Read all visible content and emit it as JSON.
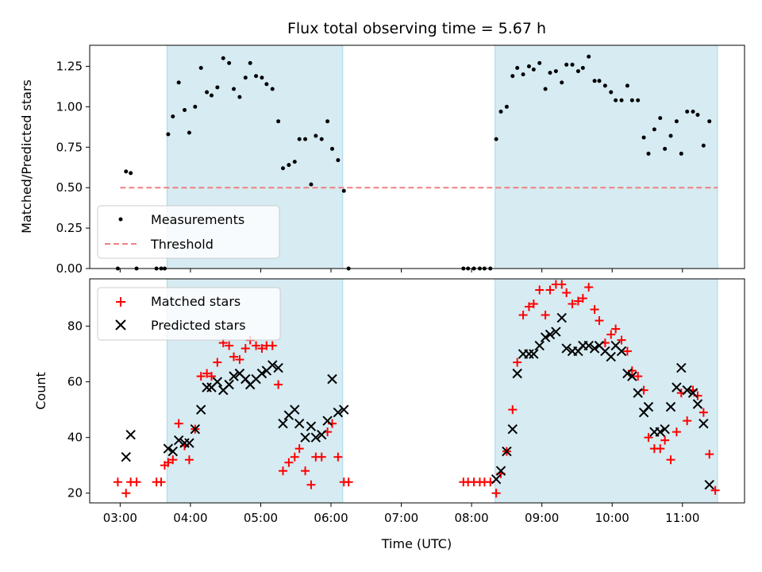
{
  "chart_data": [
    {
      "type": "scatter",
      "title": "Flux total observing time = 5.67 h",
      "xlabel": "",
      "ylabel": "Matched/Predicted stars",
      "xlim": [
        "02:34",
        "11:53"
      ],
      "ylim": [
        0,
        1.38
      ],
      "yticks": [
        "0.00",
        "0.25",
        "0.50",
        "0.75",
        "1.00",
        "1.25"
      ],
      "grid": false,
      "legend": "lower-left",
      "shaded_intervals": [
        [
          "03:40",
          "06:10"
        ],
        [
          "08:20",
          "11:30"
        ]
      ],
      "threshold": {
        "name": "Threshold",
        "value": 0.5,
        "x_range": [
          "03:00",
          "11:30"
        ],
        "color": "#f08080"
      },
      "series": [
        {
          "name": "Measurements",
          "marker": "dot",
          "color": "#000000",
          "points": [
            [
              "02:58",
              0.0
            ],
            [
              "03:05",
              0.6
            ],
            [
              "03:09",
              0.59
            ],
            [
              "03:14",
              0.0
            ],
            [
              "03:31",
              0.0
            ],
            [
              "03:35",
              0.0
            ],
            [
              "03:38",
              0.0
            ],
            [
              "03:41",
              0.83
            ],
            [
              "03:45",
              0.94
            ],
            [
              "03:50",
              1.15
            ],
            [
              "03:55",
              0.98
            ],
            [
              "03:59",
              0.84
            ],
            [
              "04:04",
              1.0
            ],
            [
              "04:09",
              1.24
            ],
            [
              "04:14",
              1.09
            ],
            [
              "04:18",
              1.07
            ],
            [
              "04:23",
              1.12
            ],
            [
              "04:28",
              1.3
            ],
            [
              "04:33",
              1.27
            ],
            [
              "04:37",
              1.11
            ],
            [
              "04:42",
              1.06
            ],
            [
              "04:47",
              1.18
            ],
            [
              "04:51",
              1.27
            ],
            [
              "04:56",
              1.19
            ],
            [
              "05:01",
              1.18
            ],
            [
              "05:05",
              1.14
            ],
            [
              "05:10",
              1.11
            ],
            [
              "05:15",
              0.91
            ],
            [
              "05:19",
              0.62
            ],
            [
              "05:24",
              0.64
            ],
            [
              "05:29",
              0.66
            ],
            [
              "05:33",
              0.8
            ],
            [
              "05:38",
              0.8
            ],
            [
              "05:43",
              0.52
            ],
            [
              "05:47",
              0.82
            ],
            [
              "05:52",
              0.8
            ],
            [
              "05:57",
              0.91
            ],
            [
              "06:01",
              0.74
            ],
            [
              "06:06",
              0.67
            ],
            [
              "06:11",
              0.48
            ],
            [
              "06:15",
              0.0
            ],
            [
              "07:53",
              0.0
            ],
            [
              "07:57",
              0.0
            ],
            [
              "08:02",
              0.0
            ],
            [
              "08:07",
              0.0
            ],
            [
              "08:11",
              0.0
            ],
            [
              "08:16",
              0.0
            ],
            [
              "08:21",
              0.8
            ],
            [
              "08:25",
              0.97
            ],
            [
              "08:30",
              1.0
            ],
            [
              "08:35",
              1.19
            ],
            [
              "08:39",
              1.24
            ],
            [
              "08:44",
              1.2
            ],
            [
              "08:49",
              1.25
            ],
            [
              "08:53",
              1.23
            ],
            [
              "08:58",
              1.27
            ],
            [
              "09:03",
              1.11
            ],
            [
              "09:07",
              1.21
            ],
            [
              "09:12",
              1.22
            ],
            [
              "09:17",
              1.15
            ],
            [
              "09:21",
              1.26
            ],
            [
              "09:26",
              1.26
            ],
            [
              "09:31",
              1.22
            ],
            [
              "09:35",
              1.24
            ],
            [
              "09:40",
              1.31
            ],
            [
              "09:45",
              1.16
            ],
            [
              "09:49",
              1.16
            ],
            [
              "09:54",
              1.13
            ],
            [
              "09:59",
              1.09
            ],
            [
              "10:03",
              1.04
            ],
            [
              "10:08",
              1.04
            ],
            [
              "10:13",
              1.13
            ],
            [
              "10:17",
              1.04
            ],
            [
              "10:22",
              1.04
            ],
            [
              "10:27",
              0.81
            ],
            [
              "10:31",
              0.71
            ],
            [
              "10:36",
              0.86
            ],
            [
              "10:41",
              0.93
            ],
            [
              "10:45",
              0.74
            ],
            [
              "10:50",
              0.82
            ],
            [
              "10:55",
              0.91
            ],
            [
              "10:59",
              0.71
            ],
            [
              "11:04",
              0.97
            ],
            [
              "11:09",
              0.97
            ],
            [
              "11:13",
              0.95
            ],
            [
              "11:18",
              0.76
            ],
            [
              "11:23",
              0.91
            ]
          ]
        }
      ]
    },
    {
      "type": "scatter",
      "title": "",
      "xlabel": "Time (UTC)",
      "ylabel": "Count",
      "xlim": [
        "02:34",
        "11:53"
      ],
      "xticks": [
        "03:00",
        "04:00",
        "05:00",
        "06:00",
        "07:00",
        "08:00",
        "09:00",
        "10:00",
        "11:00"
      ],
      "ylim": [
        16.5,
        97
      ],
      "yticks": [
        20,
        40,
        60,
        80
      ],
      "grid": false,
      "legend": "upper-left",
      "shaded_intervals": [
        [
          "03:40",
          "06:10"
        ],
        [
          "08:20",
          "11:30"
        ]
      ],
      "series": [
        {
          "name": "Matched stars",
          "marker": "plus",
          "color": "#ff0000",
          "points": [
            [
              "02:58",
              24
            ],
            [
              "03:05",
              20
            ],
            [
              "03:09",
              24
            ],
            [
              "03:14",
              24
            ],
            [
              "03:31",
              24
            ],
            [
              "03:35",
              24
            ],
            [
              "03:38",
              30
            ],
            [
              "03:41",
              31
            ],
            [
              "03:45",
              32
            ],
            [
              "03:50",
              45
            ],
            [
              "03:55",
              37
            ],
            [
              "03:59",
              32
            ],
            [
              "04:04",
              43
            ],
            [
              "04:09",
              62
            ],
            [
              "04:14",
              63
            ],
            [
              "04:18",
              62
            ],
            [
              "04:23",
              67
            ],
            [
              "04:28",
              74
            ],
            [
              "04:33",
              73
            ],
            [
              "04:37",
              69
            ],
            [
              "04:42",
              68
            ],
            [
              "04:47",
              72
            ],
            [
              "04:51",
              75
            ],
            [
              "04:56",
              73
            ],
            [
              "05:01",
              72
            ],
            [
              "05:05",
              73
            ],
            [
              "05:10",
              73
            ],
            [
              "05:15",
              59
            ],
            [
              "05:19",
              28
            ],
            [
              "05:24",
              31
            ],
            [
              "05:29",
              33
            ],
            [
              "05:33",
              36
            ],
            [
              "05:38",
              28
            ],
            [
              "05:43",
              23
            ],
            [
              "05:47",
              33
            ],
            [
              "05:52",
              33
            ],
            [
              "05:57",
              42
            ],
            [
              "06:01",
              45
            ],
            [
              "06:06",
              33
            ],
            [
              "06:11",
              24
            ],
            [
              "06:15",
              24
            ],
            [
              "07:53",
              24
            ],
            [
              "07:57",
              24
            ],
            [
              "08:02",
              24
            ],
            [
              "08:07",
              24
            ],
            [
              "08:11",
              24
            ],
            [
              "08:16",
              24
            ],
            [
              "08:21",
              20
            ],
            [
              "08:25",
              27
            ],
            [
              "08:30",
              35
            ],
            [
              "08:35",
              50
            ],
            [
              "08:39",
              67
            ],
            [
              "08:44",
              84
            ],
            [
              "08:49",
              87
            ],
            [
              "08:53",
              88
            ],
            [
              "08:58",
              93
            ],
            [
              "09:03",
              84
            ],
            [
              "09:07",
              93
            ],
            [
              "09:12",
              95
            ],
            [
              "09:17",
              95
            ],
            [
              "09:21",
              92
            ],
            [
              "09:26",
              88
            ],
            [
              "09:31",
              89
            ],
            [
              "09:35",
              90
            ],
            [
              "09:40",
              94
            ],
            [
              "09:45",
              86
            ],
            [
              "09:49",
              82
            ],
            [
              "09:54",
              74
            ],
            [
              "09:59",
              77
            ],
            [
              "10:03",
              79
            ],
            [
              "10:08",
              75
            ],
            [
              "10:13",
              71
            ],
            [
              "10:17",
              64
            ],
            [
              "10:22",
              62
            ],
            [
              "10:27",
              57
            ],
            [
              "10:31",
              40
            ],
            [
              "10:36",
              36
            ],
            [
              "10:41",
              36
            ],
            [
              "10:45",
              39
            ],
            [
              "10:50",
              32
            ],
            [
              "10:55",
              42
            ],
            [
              "10:59",
              56
            ],
            [
              "11:04",
              46
            ],
            [
              "11:09",
              57
            ],
            [
              "11:13",
              55
            ],
            [
              "11:18",
              49
            ],
            [
              "11:23",
              34
            ],
            [
              "11:28",
              21
            ]
          ]
        },
        {
          "name": "Predicted stars",
          "marker": "x",
          "color": "#000000",
          "points": [
            [
              "03:05",
              33
            ],
            [
              "03:09",
              41
            ],
            [
              "03:41",
              36
            ],
            [
              "03:45",
              35
            ],
            [
              "03:50",
              39
            ],
            [
              "03:55",
              38
            ],
            [
              "03:59",
              38
            ],
            [
              "04:04",
              43
            ],
            [
              "04:09",
              50
            ],
            [
              "04:14",
              58
            ],
            [
              "04:18",
              58
            ],
            [
              "04:23",
              60
            ],
            [
              "04:28",
              57
            ],
            [
              "04:33",
              59
            ],
            [
              "04:37",
              62
            ],
            [
              "04:42",
              63
            ],
            [
              "04:47",
              61
            ],
            [
              "04:51",
              59
            ],
            [
              "04:56",
              61
            ],
            [
              "05:01",
              63
            ],
            [
              "05:05",
              64
            ],
            [
              "05:10",
              66
            ],
            [
              "05:15",
              65
            ],
            [
              "05:19",
              45
            ],
            [
              "05:24",
              48
            ],
            [
              "05:29",
              50
            ],
            [
              "05:33",
              45
            ],
            [
              "05:38",
              40
            ],
            [
              "05:43",
              44
            ],
            [
              "05:47",
              40
            ],
            [
              "05:52",
              41
            ],
            [
              "05:57",
              46
            ],
            [
              "06:01",
              61
            ],
            [
              "06:06",
              49
            ],
            [
              "06:11",
              50
            ],
            [
              "08:21",
              25
            ],
            [
              "08:25",
              28
            ],
            [
              "08:30",
              35
            ],
            [
              "08:35",
              43
            ],
            [
              "08:39",
              63
            ],
            [
              "08:44",
              70
            ],
            [
              "08:49",
              70
            ],
            [
              "08:53",
              70
            ],
            [
              "08:58",
              73
            ],
            [
              "09:03",
              76
            ],
            [
              "09:07",
              77
            ],
            [
              "09:12",
              78
            ],
            [
              "09:17",
              83
            ],
            [
              "09:21",
              72
            ],
            [
              "09:26",
              71
            ],
            [
              "09:31",
              71
            ],
            [
              "09:35",
              73
            ],
            [
              "09:40",
              73
            ],
            [
              "09:45",
              72
            ],
            [
              "09:49",
              73
            ],
            [
              "09:54",
              71
            ],
            [
              "09:59",
              69
            ],
            [
              "10:03",
              73
            ],
            [
              "10:08",
              71
            ],
            [
              "10:13",
              63
            ],
            [
              "10:17",
              62
            ],
            [
              "10:22",
              56
            ],
            [
              "10:27",
              49
            ],
            [
              "10:31",
              51
            ],
            [
              "10:36",
              42
            ],
            [
              "10:41",
              42
            ],
            [
              "10:45",
              43
            ],
            [
              "10:50",
              51
            ],
            [
              "10:55",
              58
            ],
            [
              "10:59",
              65
            ],
            [
              "11:04",
              57
            ],
            [
              "11:09",
              56
            ],
            [
              "11:13",
              52
            ],
            [
              "11:18",
              45
            ],
            [
              "11:23",
              23
            ]
          ]
        }
      ]
    }
  ]
}
